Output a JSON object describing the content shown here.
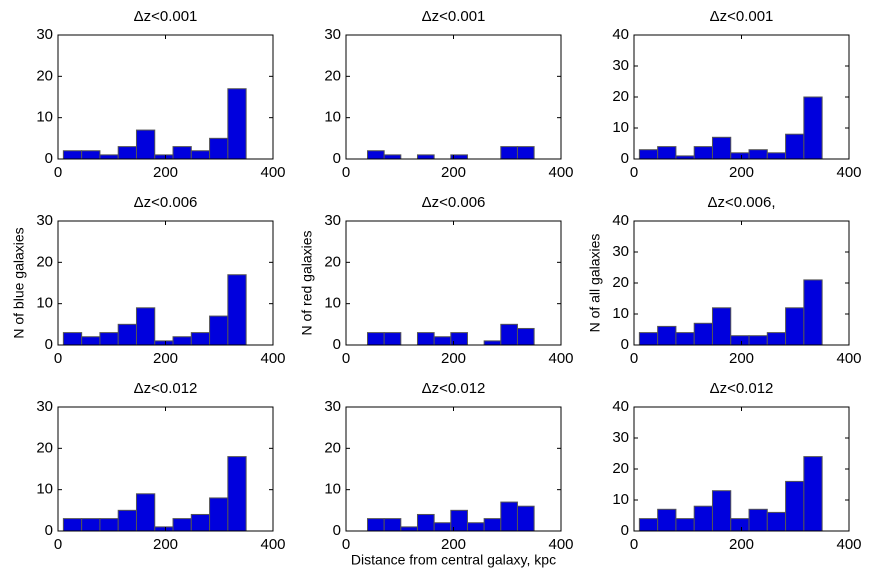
{
  "chart_data": [
    {
      "type": "histogram",
      "title": "Δz<0.001",
      "bins": [
        10,
        44,
        78,
        112,
        146,
        180,
        214,
        248,
        282,
        316,
        350
      ],
      "counts": [
        2,
        2,
        1,
        3,
        7,
        1,
        3,
        2,
        5,
        17
      ],
      "color": "#0000dd",
      "xlim": [
        0,
        400
      ],
      "xticks": [
        0,
        200,
        400
      ],
      "ylim": [
        0,
        30
      ],
      "yticks": [
        0,
        10,
        20,
        30
      ]
    },
    {
      "type": "histogram",
      "title": "Δz<0.001",
      "bins": [
        40,
        71,
        102,
        133,
        164,
        195,
        226,
        257,
        288,
        319,
        350
      ],
      "counts": [
        2,
        1,
        0,
        1,
        0,
        1,
        0,
        0,
        3,
        3
      ],
      "color": "#0000dd",
      "xlim": [
        0,
        400
      ],
      "xticks": [
        0,
        200,
        400
      ],
      "ylim": [
        0,
        30
      ],
      "yticks": [
        0,
        10,
        20,
        30
      ]
    },
    {
      "type": "histogram",
      "title": "Δz<0.001",
      "bins": [
        10,
        44,
        78,
        112,
        146,
        180,
        214,
        248,
        282,
        316,
        350
      ],
      "counts": [
        3,
        4,
        1,
        4,
        7,
        2,
        3,
        2,
        8,
        20
      ],
      "color": "#0000dd",
      "xlim": [
        0,
        400
      ],
      "xticks": [
        0,
        200,
        400
      ],
      "ylim": [
        0,
        40
      ],
      "yticks": [
        0,
        10,
        20,
        30,
        40
      ]
    },
    {
      "type": "histogram",
      "title": "Δz<0.006",
      "ylabel": "N of blue galaxies",
      "bins": [
        10,
        44,
        78,
        112,
        146,
        180,
        214,
        248,
        282,
        316,
        350
      ],
      "counts": [
        3,
        2,
        3,
        5,
        9,
        1,
        2,
        3,
        7,
        17
      ],
      "color": "#0000dd",
      "xlim": [
        0,
        400
      ],
      "xticks": [
        0,
        200,
        400
      ],
      "ylim": [
        0,
        30
      ],
      "yticks": [
        0,
        10,
        20,
        30
      ]
    },
    {
      "type": "histogram",
      "title": "Δz<0.006",
      "ylabel": "N of red galaxies",
      "bins": [
        40,
        71,
        102,
        133,
        164,
        195,
        226,
        257,
        288,
        319,
        350
      ],
      "counts": [
        3,
        3,
        0,
        3,
        2,
        3,
        0,
        1,
        5,
        4
      ],
      "color": "#0000dd",
      "xlim": [
        0,
        400
      ],
      "xticks": [
        0,
        200,
        400
      ],
      "ylim": [
        0,
        30
      ],
      "yticks": [
        0,
        10,
        20,
        30
      ]
    },
    {
      "type": "histogram",
      "title": "Δz<0.006,",
      "ylabel": "N of all galaxies",
      "bins": [
        10,
        44,
        78,
        112,
        146,
        180,
        214,
        248,
        282,
        316,
        350
      ],
      "counts": [
        4,
        6,
        4,
        7,
        12,
        3,
        3,
        4,
        12,
        21
      ],
      "color": "#0000dd",
      "xlim": [
        0,
        400
      ],
      "xticks": [
        0,
        200,
        400
      ],
      "ylim": [
        0,
        40
      ],
      "yticks": [
        0,
        10,
        20,
        30,
        40
      ]
    },
    {
      "type": "histogram",
      "title": "Δz<0.012",
      "bins": [
        10,
        44,
        78,
        112,
        146,
        180,
        214,
        248,
        282,
        316,
        350
      ],
      "counts": [
        3,
        3,
        3,
        5,
        9,
        1,
        3,
        4,
        8,
        18
      ],
      "color": "#0000dd",
      "xlim": [
        0,
        400
      ],
      "xticks": [
        0,
        200,
        400
      ],
      "ylim": [
        0,
        30
      ],
      "yticks": [
        0,
        10,
        20,
        30
      ]
    },
    {
      "type": "histogram",
      "title": "Δz<0.012",
      "xlabel": "Distance from central galaxy, kpc",
      "bins": [
        40,
        71,
        102,
        133,
        164,
        195,
        226,
        257,
        288,
        319,
        350
      ],
      "counts": [
        3,
        3,
        1,
        4,
        2,
        5,
        2,
        3,
        7,
        6
      ],
      "color": "#0000dd",
      "xlim": [
        0,
        400
      ],
      "xticks": [
        0,
        200,
        400
      ],
      "ylim": [
        0,
        30
      ],
      "yticks": [
        0,
        10,
        20,
        30
      ]
    },
    {
      "type": "histogram",
      "title": "Δz<0.012",
      "bins": [
        10,
        44,
        78,
        112,
        146,
        180,
        214,
        248,
        282,
        316,
        350
      ],
      "counts": [
        4,
        7,
        4,
        8,
        13,
        4,
        7,
        6,
        16,
        24
      ],
      "color": "#0000dd",
      "xlim": [
        0,
        400
      ],
      "xticks": [
        0,
        200,
        400
      ],
      "ylim": [
        0,
        40
      ],
      "yticks": [
        0,
        10,
        20,
        30,
        40
      ]
    }
  ]
}
